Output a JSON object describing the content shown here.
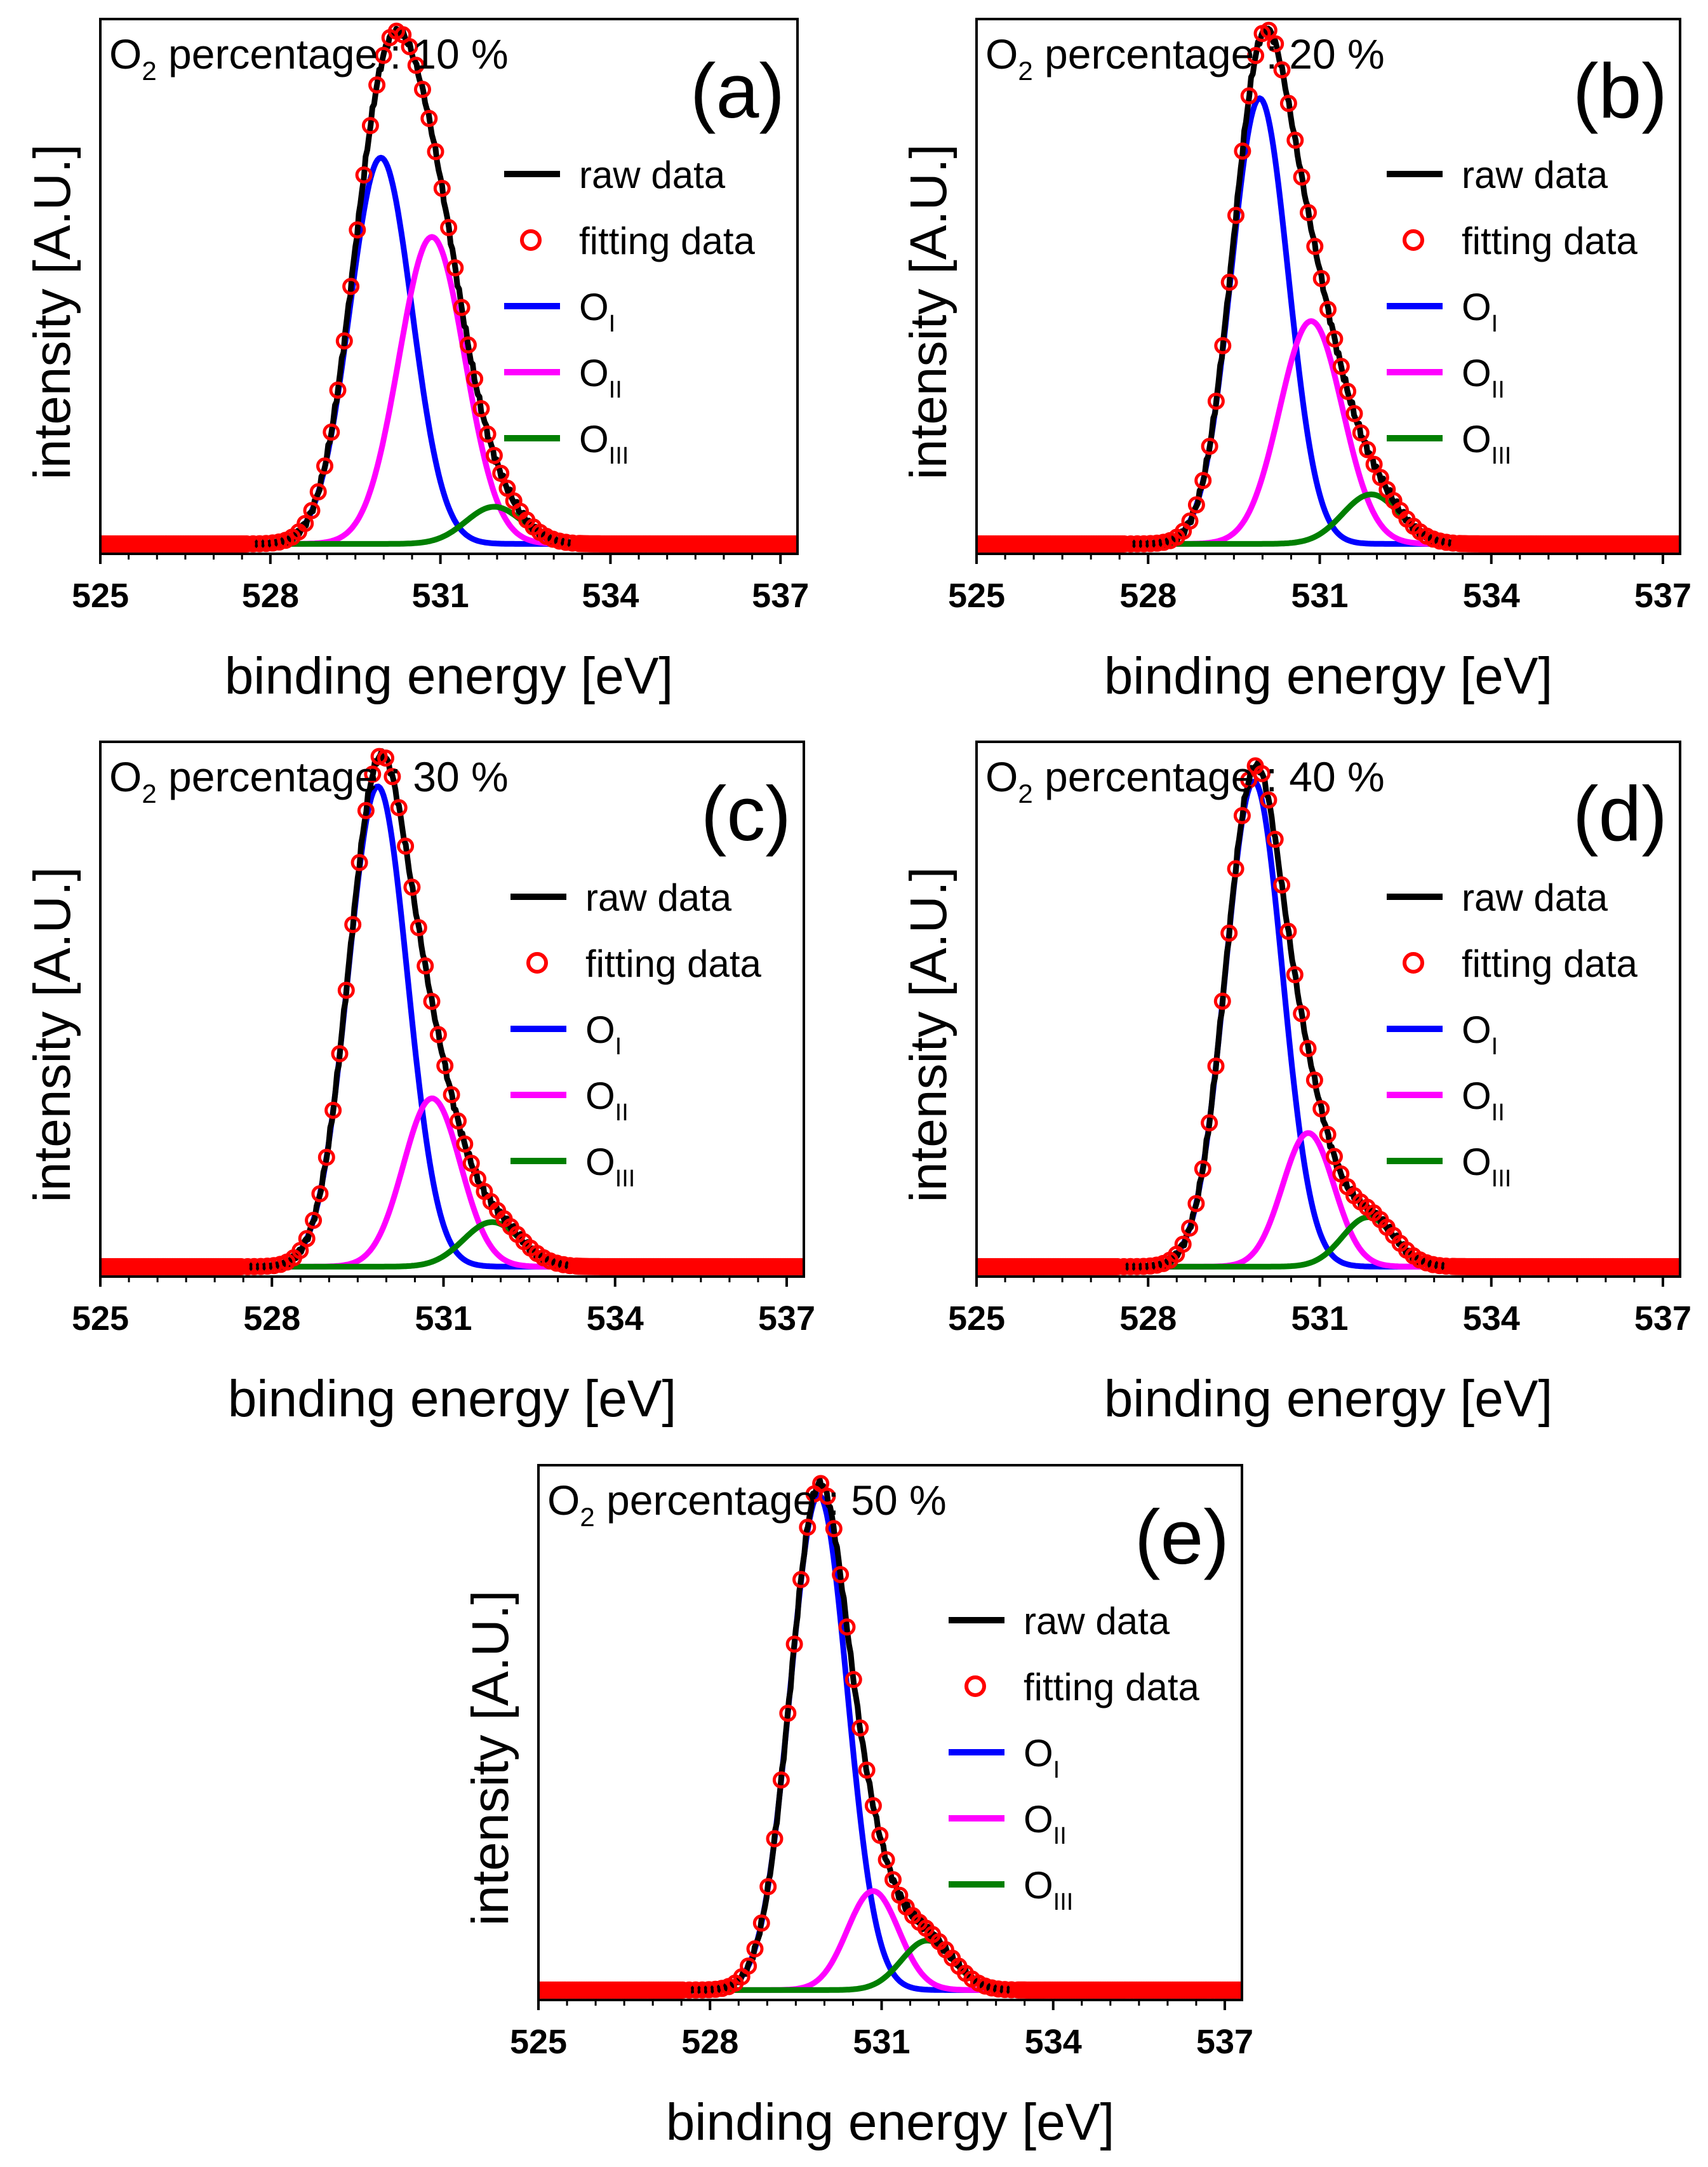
{
  "chart_data": [
    {
      "type": "line",
      "panel_label": "(a)",
      "annotation": {
        "prefix": "O",
        "subscript": "2",
        "text": " percentage : 10 %"
      },
      "xlabel": "binding energy [eV]",
      "ylabel": "intensity [A.U.]",
      "xlim": [
        525,
        537.3
      ],
      "ylim": [
        0,
        1.08
      ],
      "xticks": [
        "525",
        "528",
        "531",
        "534",
        "537"
      ],
      "xtick_values": [
        525,
        528,
        531,
        534,
        537
      ],
      "grid": false,
      "legend_position": "right",
      "legend": [
        {
          "name": "raw data",
          "sub": "",
          "color": "#000000",
          "style": "line"
        },
        {
          "name": "fitting data",
          "sub": "",
          "color": "#ff0000",
          "style": "circle"
        },
        {
          "name": "O",
          "sub": "I",
          "color": "#0000ff",
          "style": "line"
        },
        {
          "name": "O",
          "sub": "II",
          "color": "#ff00ff",
          "style": "line"
        },
        {
          "name": "O",
          "sub": "III",
          "color": "#007f00",
          "style": "line"
        }
      ],
      "series": [
        {
          "name": "OI",
          "color": "#0000ff",
          "center": 529.95,
          "amplitude": 0.78,
          "sigma": 0.55
        },
        {
          "name": "OII",
          "color": "#ff00ff",
          "center": 530.85,
          "amplitude": 0.62,
          "sigma": 0.58
        },
        {
          "name": "OIII",
          "color": "#007f00",
          "center": 531.95,
          "amplitude": 0.075,
          "sigma": 0.5
        }
      ],
      "baseline": 0.02
    },
    {
      "type": "line",
      "panel_label": "(b)",
      "annotation": {
        "prefix": "O",
        "subscript": "2",
        "text": " percentage : 20 %"
      },
      "xlabel": "binding energy [eV]",
      "ylabel": "intensity [A.U.]",
      "xlim": [
        525,
        537.3
      ],
      "ylim": [
        0,
        1.08
      ],
      "xticks": [
        "525",
        "528",
        "531",
        "534",
        "537"
      ],
      "xtick_values": [
        525,
        528,
        531,
        534,
        537
      ],
      "grid": false,
      "legend_position": "right",
      "legend": [
        {
          "name": "raw data",
          "sub": "",
          "color": "#000000",
          "style": "line"
        },
        {
          "name": "fitting data",
          "sub": "",
          "color": "#ff0000",
          "style": "circle"
        },
        {
          "name": "O",
          "sub": "I",
          "color": "#0000ff",
          "style": "line"
        },
        {
          "name": "O",
          "sub": "II",
          "color": "#ff00ff",
          "style": "line"
        },
        {
          "name": "O",
          "sub": "III",
          "color": "#007f00",
          "style": "line"
        }
      ],
      "series": [
        {
          "name": "OI",
          "color": "#0000ff",
          "center": 529.95,
          "amplitude": 0.9,
          "sigma": 0.5
        },
        {
          "name": "OII",
          "color": "#ff00ff",
          "center": 530.85,
          "amplitude": 0.45,
          "sigma": 0.55
        },
        {
          "name": "OIII",
          "color": "#007f00",
          "center": 531.9,
          "amplitude": 0.1,
          "sigma": 0.5
        }
      ],
      "baseline": 0.02
    },
    {
      "type": "line",
      "panel_label": "(c)",
      "annotation": {
        "prefix": "O",
        "subscript": "2",
        "text": " percentage : 30 %"
      },
      "xlabel": "binding energy [eV]",
      "ylabel": "intensity [A.U.]",
      "xlim": [
        525,
        537.3
      ],
      "ylim": [
        0,
        1.08
      ],
      "xticks": [
        "525",
        "528",
        "531",
        "534",
        "537"
      ],
      "xtick_values": [
        525,
        528,
        531,
        534,
        537
      ],
      "grid": false,
      "legend_position": "right",
      "legend": [
        {
          "name": "raw data",
          "sub": "",
          "color": "#000000",
          "style": "line"
        },
        {
          "name": "fitting data",
          "sub": "",
          "color": "#ff0000",
          "style": "circle"
        },
        {
          "name": "O",
          "sub": "I",
          "color": "#0000ff",
          "style": "line"
        },
        {
          "name": "O",
          "sub": "II",
          "color": "#ff00ff",
          "style": "line"
        },
        {
          "name": "O",
          "sub": "III",
          "color": "#007f00",
          "style": "line"
        }
      ],
      "series": [
        {
          "name": "OI",
          "color": "#0000ff",
          "center": 529.85,
          "amplitude": 0.97,
          "sigma": 0.52
        },
        {
          "name": "OII",
          "color": "#ff00ff",
          "center": 530.8,
          "amplitude": 0.34,
          "sigma": 0.5
        },
        {
          "name": "OIII",
          "color": "#007f00",
          "center": 531.85,
          "amplitude": 0.09,
          "sigma": 0.5
        }
      ],
      "baseline": 0.02
    },
    {
      "type": "line",
      "panel_label": "(d)",
      "annotation": {
        "prefix": "O",
        "subscript": "2",
        "text": " percentage : 40 %"
      },
      "xlabel": "binding energy [eV]",
      "ylabel": "intensity [A.U.]",
      "xlim": [
        525,
        537.3
      ],
      "ylim": [
        0,
        1.08
      ],
      "xticks": [
        "525",
        "528",
        "531",
        "534",
        "537"
      ],
      "xtick_values": [
        525,
        528,
        531,
        534,
        537
      ],
      "grid": false,
      "legend_position": "right",
      "legend": [
        {
          "name": "raw data",
          "sub": "",
          "color": "#000000",
          "style": "line"
        },
        {
          "name": "fitting data",
          "sub": "",
          "color": "#ff0000",
          "style": "circle"
        },
        {
          "name": "O",
          "sub": "I",
          "color": "#0000ff",
          "style": "line"
        },
        {
          "name": "O",
          "sub": "II",
          "color": "#ff00ff",
          "style": "line"
        },
        {
          "name": "O",
          "sub": "III",
          "color": "#007f00",
          "style": "line"
        }
      ],
      "series": [
        {
          "name": "OI",
          "color": "#0000ff",
          "center": 529.85,
          "amplitude": 0.98,
          "sigma": 0.5
        },
        {
          "name": "OII",
          "color": "#ff00ff",
          "center": 530.8,
          "amplitude": 0.27,
          "sigma": 0.45
        },
        {
          "name": "OIII",
          "color": "#007f00",
          "center": 531.85,
          "amplitude": 0.1,
          "sigma": 0.45
        }
      ],
      "baseline": 0.02
    },
    {
      "type": "line",
      "panel_label": "(e)",
      "annotation": {
        "prefix": "O",
        "subscript": "2",
        "text": " percentage : 50 %"
      },
      "xlabel": "binding energy [eV]",
      "ylabel": "intensity [A.U.]",
      "xlim": [
        525,
        537.3
      ],
      "ylim": [
        0,
        1.08
      ],
      "xticks": [
        "525",
        "528",
        "531",
        "534",
        "537"
      ],
      "xtick_values": [
        525,
        528,
        531,
        534,
        537
      ],
      "grid": false,
      "legend_position": "right",
      "legend": [
        {
          "name": "raw data",
          "sub": "",
          "color": "#000000",
          "style": "line"
        },
        {
          "name": "fitting data",
          "sub": "",
          "color": "#ff0000",
          "style": "circle"
        },
        {
          "name": "O",
          "sub": "I",
          "color": "#0000ff",
          "style": "line"
        },
        {
          "name": "O",
          "sub": "II",
          "color": "#ff00ff",
          "style": "line"
        },
        {
          "name": "O",
          "sub": "III",
          "color": "#007f00",
          "style": "line"
        }
      ],
      "series": [
        {
          "name": "OI",
          "color": "#0000ff",
          "center": 529.9,
          "amplitude": 1.0,
          "sigma": 0.5
        },
        {
          "name": "OII",
          "color": "#ff00ff",
          "center": 530.85,
          "amplitude": 0.2,
          "sigma": 0.45
        },
        {
          "name": "OIII",
          "color": "#007f00",
          "center": 531.8,
          "amplitude": 0.1,
          "sigma": 0.45
        }
      ],
      "baseline": 0.02
    }
  ]
}
